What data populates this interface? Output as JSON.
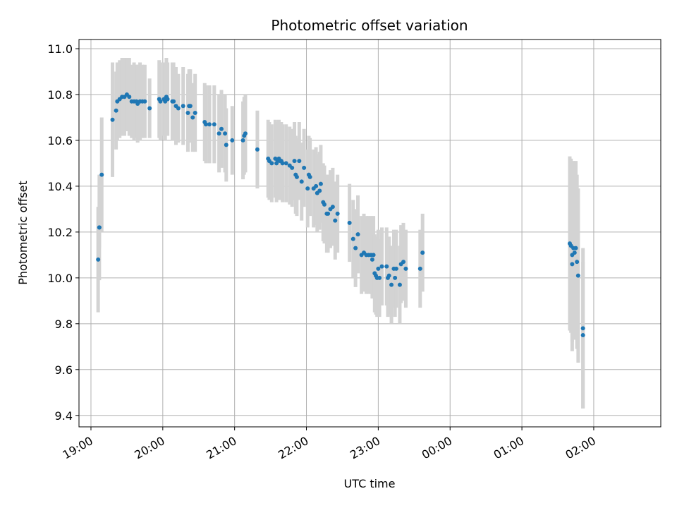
{
  "chart_data": {
    "type": "scatter",
    "title": "Photometric offset variation",
    "xlabel": "UTC time",
    "ylabel": "Photometric offset",
    "x_is_time": true,
    "xlim": [
      "18:50",
      "02:56"
    ],
    "ylim": [
      9.35,
      11.04
    ],
    "x_ticks": [
      "19:00",
      "20:00",
      "21:00",
      "22:00",
      "23:00",
      "00:00",
      "01:00",
      "02:00"
    ],
    "y_ticks": [
      "9.4",
      "9.6",
      "9.8",
      "10.0",
      "10.2",
      "10.4",
      "10.6",
      "10.8",
      "11.0"
    ],
    "grid": true,
    "legend": "none",
    "colors": {
      "points": "#1f77b4",
      "errorbars": "#d3d3d3",
      "grid": "#b0b0b0"
    },
    "series": [
      {
        "points": [
          [
            "19:06",
            10.08,
            0.23
          ],
          [
            "19:07",
            10.22,
            0.09
          ],
          [
            "19:07",
            10.22,
            0.23
          ],
          [
            "19:09",
            10.45,
            0.25
          ],
          [
            "19:18",
            10.69,
            0.25
          ],
          [
            "19:21",
            10.73,
            0.17
          ],
          [
            "19:22",
            10.77,
            0.17
          ],
          [
            "19:24",
            10.78,
            0.17
          ],
          [
            "19:26",
            10.79,
            0.17
          ],
          [
            "19:28",
            10.79,
            0.17
          ],
          [
            "19:30",
            10.8,
            0.16
          ],
          [
            "19:32",
            10.79,
            0.17
          ],
          [
            "19:34",
            10.77,
            0.16
          ],
          [
            "19:36",
            10.77,
            0.17
          ],
          [
            "19:38",
            10.77,
            0.16
          ],
          [
            "19:39",
            10.76,
            0.17
          ],
          [
            "19:41",
            10.77,
            0.17
          ],
          [
            "19:43",
            10.77,
            0.16
          ],
          [
            "19:45",
            10.77,
            0.16
          ],
          [
            "19:49",
            10.74,
            0.13
          ],
          [
            "19:57",
            10.78,
            0.17
          ],
          [
            "19:58",
            10.77,
            0.17
          ],
          [
            "20:01",
            10.78,
            0.16
          ],
          [
            "20:02",
            10.77,
            0.17
          ],
          [
            "20:03",
            10.79,
            0.17
          ],
          [
            "20:04",
            10.78,
            0.16
          ],
          [
            "20:08",
            10.77,
            0.17
          ],
          [
            "20:09",
            10.77,
            0.17
          ],
          [
            "20:11",
            10.75,
            0.17
          ],
          [
            "20:13",
            10.74,
            0.15
          ],
          [
            "20:17",
            10.75,
            0.17
          ],
          [
            "20:21",
            10.72,
            0.17
          ],
          [
            "20:22",
            10.75,
            0.16
          ],
          [
            "20:23",
            10.75,
            0.16
          ],
          [
            "20:25",
            10.7,
            0.15
          ],
          [
            "20:27",
            10.72,
            0.17
          ],
          [
            "20:35",
            10.68,
            0.17
          ],
          [
            "20:36",
            10.67,
            0.17
          ],
          [
            "20:39",
            10.67,
            0.17
          ],
          [
            "20:43",
            10.67,
            0.17
          ],
          [
            "20:47",
            10.63,
            0.17
          ],
          [
            "20:49",
            10.65,
            0.17
          ],
          [
            "20:52",
            10.63,
            0.17
          ],
          [
            "20:53",
            10.58,
            0.16
          ],
          [
            "20:58",
            10.6,
            0.15
          ],
          [
            "21:07",
            10.6,
            0.17
          ],
          [
            "21:08",
            10.62,
            0.17
          ],
          [
            "21:09",
            10.63,
            0.17
          ],
          [
            "21:19",
            10.56,
            0.17
          ],
          [
            "21:28",
            10.52,
            0.17
          ],
          [
            "21:29",
            10.51,
            0.17
          ],
          [
            "21:31",
            10.5,
            0.17
          ],
          [
            "21:34",
            10.52,
            0.17
          ],
          [
            "21:35",
            10.5,
            0.17
          ],
          [
            "21:36",
            10.51,
            0.17
          ],
          [
            "21:37",
            10.52,
            0.17
          ],
          [
            "21:38",
            10.51,
            0.17
          ],
          [
            "21:39",
            10.51,
            0.17
          ],
          [
            "21:40",
            10.5,
            0.17
          ],
          [
            "21:43",
            10.5,
            0.17
          ],
          [
            "21:46",
            10.49,
            0.17
          ],
          [
            "21:48",
            10.48,
            0.17
          ],
          [
            "21:50",
            10.51,
            0.17
          ],
          [
            "21:51",
            10.45,
            0.17
          ],
          [
            "21:52",
            10.44,
            0.17
          ],
          [
            "21:54",
            10.51,
            0.17
          ],
          [
            "21:56",
            10.42,
            0.17
          ],
          [
            "21:58",
            10.48,
            0.17
          ],
          [
            "22:01",
            10.39,
            0.17
          ],
          [
            "22:02",
            10.45,
            0.17
          ],
          [
            "22:03",
            10.44,
            0.17
          ],
          [
            "22:06",
            10.39,
            0.17
          ],
          [
            "22:08",
            10.4,
            0.17
          ],
          [
            "22:09",
            10.37,
            0.17
          ],
          [
            "22:11",
            10.38,
            0.17
          ],
          [
            "22:12",
            10.41,
            0.17
          ],
          [
            "22:14",
            10.33,
            0.17
          ],
          [
            "22:15",
            10.32,
            0.17
          ],
          [
            "22:17",
            10.28,
            0.17
          ],
          [
            "22:18",
            10.28,
            0.17
          ],
          [
            "22:20",
            10.3,
            0.17
          ],
          [
            "22:22",
            10.31,
            0.17
          ],
          [
            "22:24",
            10.25,
            0.17
          ],
          [
            "22:26",
            10.28,
            0.17
          ],
          [
            "22:36",
            10.24,
            0.17
          ],
          [
            "22:39",
            10.17,
            0.17
          ],
          [
            "22:41",
            10.13,
            0.17
          ],
          [
            "22:43",
            10.19,
            0.17
          ],
          [
            "22:46",
            10.1,
            0.17
          ],
          [
            "22:48",
            10.11,
            0.17
          ],
          [
            "22:50",
            10.1,
            0.17
          ],
          [
            "22:52",
            10.1,
            0.17
          ],
          [
            "22:54",
            10.1,
            0.17
          ],
          [
            "22:55",
            10.08,
            0.17
          ],
          [
            "22:56",
            10.1,
            0.17
          ],
          [
            "22:57",
            10.02,
            0.17
          ],
          [
            "22:58",
            10.01,
            0.17
          ],
          [
            "22:59",
            10.0,
            0.17
          ],
          [
            "23:00",
            10.04,
            0.17
          ],
          [
            "23:01",
            10.0,
            0.17
          ],
          [
            "23:03",
            10.05,
            0.17
          ],
          [
            "23:07",
            10.05,
            0.17
          ],
          [
            "23:08",
            10.0,
            0.17
          ],
          [
            "23:09",
            10.01,
            0.17
          ],
          [
            "23:11",
            9.97,
            0.17
          ],
          [
            "23:13",
            10.04,
            0.17
          ],
          [
            "23:14",
            10.0,
            0.17
          ],
          [
            "23:15",
            10.04,
            0.17
          ],
          [
            "23:18",
            9.97,
            0.17
          ],
          [
            "23:19",
            10.06,
            0.17
          ],
          [
            "23:21",
            10.07,
            0.17
          ],
          [
            "23:23",
            10.04,
            0.17
          ],
          [
            "23:35",
            10.04,
            0.17
          ],
          [
            "23:37",
            10.11,
            0.17
          ],
          [
            "01:40",
            10.15,
            0.38
          ],
          [
            "01:41",
            10.14,
            0.38
          ],
          [
            "01:42",
            10.1,
            0.38
          ],
          [
            "01:42",
            10.06,
            0.38
          ],
          [
            "01:43",
            10.13,
            0.38
          ],
          [
            "01:44",
            10.11,
            0.38
          ],
          [
            "01:45",
            10.13,
            0.38
          ],
          [
            "01:46",
            10.07,
            0.38
          ],
          [
            "01:47",
            10.01,
            0.38
          ],
          [
            "01:51",
            9.78,
            0.35
          ],
          [
            "01:51",
            9.75,
            0.32
          ]
        ]
      }
    ]
  }
}
